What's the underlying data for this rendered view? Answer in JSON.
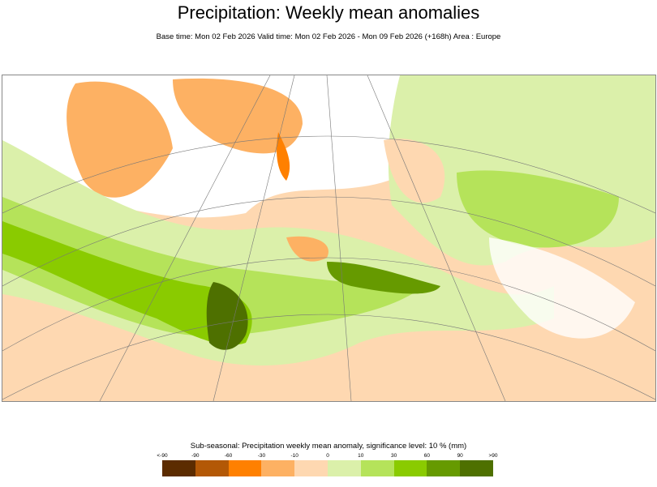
{
  "title": "Precipitation: Weekly mean anomalies",
  "subtitle": "Base time: Mon 02 Feb 2026 Valid time: Mon 02 Feb 2026 - Mon 09 Feb 2026 (+168h) Area : Europe",
  "legend": {
    "title": "Sub-seasonal: Precipitation weekly mean anomaly, significance level: 10 % (mm)",
    "ticks": [
      "<-90",
      "-90",
      "-60",
      "-30",
      "-10",
      "0",
      "10",
      "30",
      "60",
      "90",
      ">90"
    ],
    "colors": [
      "#5c2c00",
      "#b35806",
      "#ff8000",
      "#fdb163",
      "#fed8b1",
      "#dbf0aa",
      "#b5e35a",
      "#8acb00",
      "#669a00",
      "#4e7000"
    ]
  }
}
